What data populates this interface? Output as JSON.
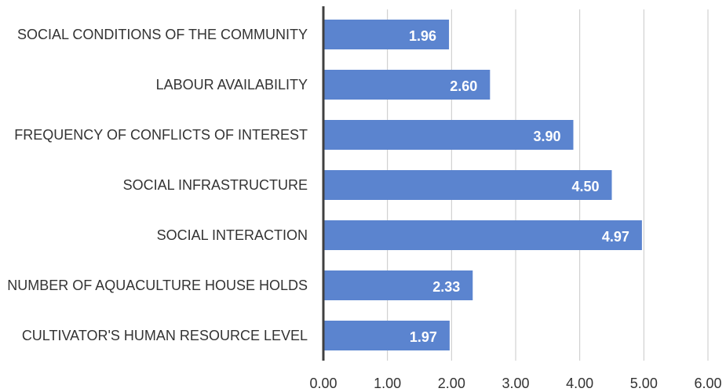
{
  "chart_data": {
    "type": "bar",
    "orientation": "horizontal",
    "categories": [
      "SOCIAL CONDITIONS OF THE COMMUNITY",
      "LABOUR AVAILABILITY",
      "FREQUENCY OF CONFLICTS OF INTEREST",
      "SOCIAL INFRASTRUCTURE",
      "SOCIAL INTERACTION",
      "NUMBER OF AQUACULTURE HOUSE HOLDS",
      "CULTIVATOR'S HUMAN RESOURCE LEVEL"
    ],
    "values": [
      1.96,
      2.6,
      3.9,
      4.5,
      4.97,
      2.33,
      1.97
    ],
    "value_labels": [
      "1.96",
      "2.60",
      "3.90",
      "4.50",
      "4.97",
      "2.33",
      "1.97"
    ],
    "color": "#5b84cf",
    "xlim": [
      0,
      6
    ],
    "xticks": [
      {
        "value": 0,
        "label": "0.00"
      },
      {
        "value": 1,
        "label": "1.00"
      },
      {
        "value": 2,
        "label": "2.00"
      },
      {
        "value": 3,
        "label": "3.00"
      },
      {
        "value": 4,
        "label": "4.00"
      },
      {
        "value": 5,
        "label": "5.00"
      },
      {
        "value": 6,
        "label": "6.00"
      }
    ],
    "grid": true
  }
}
